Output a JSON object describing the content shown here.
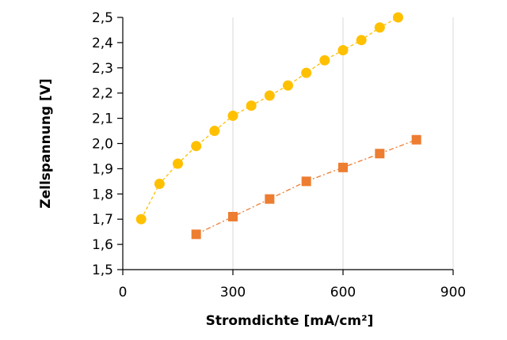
{
  "chart_data": {
    "type": "scatter",
    "title": "",
    "xlabel": "Stromdichte [mA/cm²]",
    "ylabel": "Zellspannung [V]",
    "xlim": [
      0,
      900
    ],
    "ylim": [
      1.5,
      2.5
    ],
    "x_ticks": [
      "0",
      "300",
      "600",
      "900"
    ],
    "y_ticks": [
      "1,5",
      "1,6",
      "1,7",
      "1,8",
      "1,9",
      "2,0",
      "2,1",
      "2,2",
      "2,3",
      "2,4",
      "2,5"
    ],
    "grid": "vertical",
    "legend": "none",
    "series": [
      {
        "marker": "circle",
        "line": "dashed",
        "color": "#FFC000",
        "points": [
          [
            50,
            1.7
          ],
          [
            100,
            1.84
          ],
          [
            150,
            1.92
          ],
          [
            200,
            1.99
          ],
          [
            250,
            2.05
          ],
          [
            300,
            2.11
          ],
          [
            350,
            2.15
          ],
          [
            400,
            2.19
          ],
          [
            450,
            2.23
          ],
          [
            500,
            2.28
          ],
          [
            550,
            2.33
          ],
          [
            600,
            2.37
          ],
          [
            650,
            2.41
          ],
          [
            700,
            2.46
          ],
          [
            750,
            2.5
          ]
        ]
      },
      {
        "marker": "square",
        "line": "dash-dot",
        "color": "#ED7D31",
        "points": [
          [
            200,
            1.64
          ],
          [
            300,
            1.71
          ],
          [
            400,
            1.78
          ],
          [
            500,
            1.85
          ],
          [
            600,
            1.905
          ],
          [
            700,
            1.96
          ],
          [
            800,
            2.015
          ]
        ]
      }
    ]
  }
}
